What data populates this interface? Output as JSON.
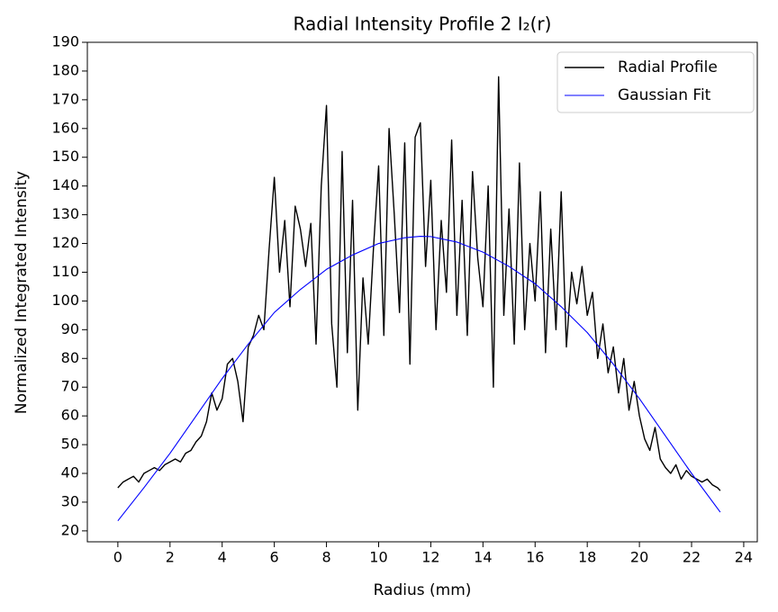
{
  "chart_data": {
    "type": "line",
    "title": "Radial Intensity Profile 2 I₂(r)",
    "xlabel": "Radius (mm)",
    "ylabel": "Normalized Integrated Intensity",
    "xlim": [
      -1.17,
      24.52
    ],
    "ylim": [
      16.2,
      190
    ],
    "xticks": [
      0,
      2,
      4,
      6,
      8,
      10,
      12,
      14,
      16,
      18,
      20,
      22,
      24
    ],
    "yticks": [
      20,
      30,
      40,
      50,
      60,
      70,
      80,
      90,
      100,
      110,
      120,
      130,
      140,
      150,
      160,
      170,
      180,
      190
    ],
    "legend": "upper right",
    "series": [
      {
        "name": "Radial Profile",
        "color": "#000000",
        "width": 1.4,
        "x": [
          0,
          0.2,
          0.4,
          0.6,
          0.8,
          1,
          1.2,
          1.4,
          1.6,
          1.8,
          2,
          2.2,
          2.4,
          2.6,
          2.8,
          3,
          3.2,
          3.4,
          3.6,
          3.8,
          4,
          4.2,
          4.4,
          4.6,
          4.8,
          5,
          5.2,
          5.4,
          5.6,
          5.8,
          6,
          6.2,
          6.4,
          6.6,
          6.8,
          7,
          7.2,
          7.4,
          7.6,
          7.8,
          8,
          8.2,
          8.4,
          8.6,
          8.8,
          9,
          9.2,
          9.4,
          9.6,
          9.8,
          10,
          10.2,
          10.4,
          10.6,
          10.8,
          11,
          11.2,
          11.4,
          11.6,
          11.8,
          12,
          12.2,
          12.4,
          12.6,
          12.8,
          13,
          13.2,
          13.4,
          13.6,
          13.8,
          14,
          14.2,
          14.4,
          14.6,
          14.8,
          15,
          15.2,
          15.4,
          15.6,
          15.8,
          16,
          16.2,
          16.4,
          16.6,
          16.8,
          17,
          17.2,
          17.4,
          17.6,
          17.8,
          18,
          18.2,
          18.4,
          18.6,
          18.8,
          19,
          19.2,
          19.4,
          19.6,
          19.8,
          20,
          20.2,
          20.4,
          20.6,
          20.8,
          21,
          21.2,
          21.4,
          21.6,
          21.8,
          22,
          22.2,
          22.4,
          22.6,
          22.8,
          23,
          23.1
        ],
        "values": [
          35,
          37,
          38,
          39,
          37,
          40,
          41,
          42,
          41,
          43,
          44,
          45,
          44,
          47,
          48,
          51,
          53,
          58,
          68,
          62,
          66,
          78,
          80,
          72,
          58,
          84,
          88,
          95,
          90,
          118,
          143,
          110,
          128,
          98,
          133,
          125,
          112,
          127,
          85,
          140,
          168,
          92,
          70,
          152,
          82,
          135,
          62,
          108,
          85,
          118,
          147,
          88,
          160,
          130,
          96,
          155,
          78,
          157,
          162,
          112,
          142,
          90,
          128,
          103,
          156,
          95,
          135,
          88,
          145,
          115,
          98,
          140,
          70,
          178,
          95,
          132,
          85,
          148,
          90,
          120,
          100,
          138,
          82,
          125,
          90,
          138,
          84,
          110,
          99,
          112,
          95,
          103,
          80,
          92,
          75,
          84,
          68,
          80,
          62,
          72,
          60,
          52,
          48,
          56,
          45,
          42,
          40,
          43,
          38,
          41,
          39,
          38,
          37,
          38,
          36,
          35,
          34
        ]
      },
      {
        "name": "Gaussian Fit",
        "color": "#0000ff",
        "width": 1.1,
        "x": [
          0,
          1,
          2,
          3,
          4,
          5,
          6,
          7,
          8,
          9,
          10,
          11,
          11.6,
          12,
          13,
          14,
          15,
          16,
          17,
          18,
          19,
          20,
          21,
          22,
          23.1
        ],
        "values": [
          23.5,
          35,
          47,
          60,
          73,
          85,
          96,
          104,
          111,
          116,
          120,
          122,
          122.5,
          122.4,
          120.5,
          117,
          112,
          106,
          98,
          89,
          78,
          66,
          53,
          40,
          26.5
        ]
      }
    ]
  }
}
